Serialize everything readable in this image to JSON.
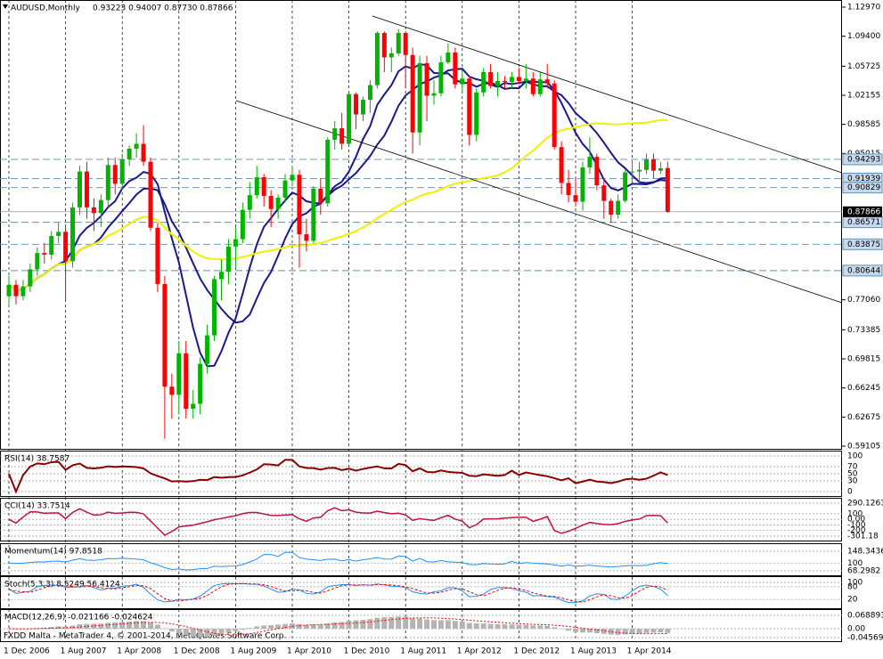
{
  "chart_data": {
    "type": "candlestick",
    "title": "AUDUSD,Monthly",
    "ohlc_text": "0.93223 0.94007 0.87730 0.87866",
    "footer": "FXDD Malta - MetaTrader 4, © 2001-2014, MetaQuotes Software Corp.",
    "categories": [
      "1 Dec 2006",
      null,
      null,
      null,
      null,
      null,
      null,
      null,
      "1 Aug 2007",
      null,
      null,
      null,
      null,
      null,
      null,
      null,
      "1 Apr 2008",
      null,
      null,
      null,
      null,
      null,
      null,
      null,
      "1 Dec 2008",
      null,
      null,
      null,
      null,
      null,
      null,
      null,
      "1 Aug 2009",
      null,
      null,
      null,
      null,
      null,
      null,
      null,
      "1 Apr 2010",
      null,
      null,
      null,
      null,
      null,
      null,
      null,
      "1 Dec 2010",
      null,
      null,
      null,
      null,
      null,
      null,
      null,
      "1 Aug 2011",
      null,
      null,
      null,
      null,
      null,
      null,
      null,
      "1 Apr 2012",
      null,
      null,
      null,
      null,
      null,
      null,
      null,
      "1 Dec 2012",
      null,
      null,
      null,
      null,
      null,
      null,
      null,
      "1 Aug 2013",
      null,
      null,
      null,
      null,
      null,
      null,
      null,
      "1 Apr 2014",
      null,
      null,
      null,
      null,
      null
    ],
    "open": [
      0.775,
      0.789,
      0.775,
      0.787,
      0.808,
      0.828,
      0.826,
      0.849,
      0.854,
      0.818,
      0.884,
      0.928,
      0.884,
      0.877,
      0.893,
      0.936,
      0.913,
      0.943,
      0.956,
      0.962,
      0.94,
      0.859,
      0.79,
      0.664,
      0.654,
      0.705,
      0.637,
      0.643,
      0.692,
      0.727,
      0.796,
      0.805,
      0.836,
      0.845,
      0.881,
      0.899,
      0.921,
      0.898,
      0.882,
      0.896,
      0.917,
      0.924,
      0.851,
      0.843,
      0.907,
      0.889,
      0.967,
      0.981,
      0.962,
      1.023,
      0.998,
      1.016,
      1.034,
      1.098,
      1.068,
      1.073,
      1.098,
      1.071,
      0.976,
      1.061,
      1.021,
      1.024,
      1.062,
      1.074,
      1.035,
      1.042,
      0.973,
      1.025,
      1.05,
      1.033,
      1.039,
      1.038,
      1.044,
      1.039,
      1.042,
      1.023,
      1.041,
      1.036,
      0.958,
      0.914,
      0.899,
      0.891,
      0.933,
      0.946,
      0.911,
      0.892,
      0.875,
      0.892,
      0.927,
      0.928,
      0.93,
      0.943,
      0.929,
      0.93223
    ],
    "high": [
      0.8,
      0.795,
      0.795,
      0.815,
      0.835,
      0.84,
      0.855,
      0.865,
      0.86,
      0.89,
      0.935,
      0.94,
      0.895,
      0.9,
      0.945,
      0.945,
      0.95,
      0.96,
      0.975,
      0.985,
      0.945,
      0.865,
      0.8,
      0.68,
      0.72,
      0.72,
      0.66,
      0.7,
      0.74,
      0.8,
      0.82,
      0.845,
      0.86,
      0.89,
      0.915,
      0.935,
      0.925,
      0.905,
      0.9,
      0.925,
      0.935,
      0.93,
      0.87,
      0.91,
      0.92,
      0.97,
      0.99,
      1.0,
      1.025,
      1.025,
      1.02,
      1.04,
      1.1,
      1.1,
      1.08,
      1.103,
      1.1,
      1.08,
      1.07,
      1.07,
      1.04,
      1.07,
      1.085,
      1.08,
      1.05,
      1.045,
      1.03,
      1.055,
      1.06,
      1.05,
      1.045,
      1.05,
      1.055,
      1.06,
      1.05,
      1.05,
      1.06,
      1.04,
      0.965,
      0.93,
      0.92,
      0.94,
      0.97,
      0.95,
      0.92,
      0.895,
      0.9,
      0.93,
      0.94,
      0.94,
      0.95,
      0.95,
      0.94,
      0.94007
    ],
    "low": [
      0.765,
      0.765,
      0.77,
      0.78,
      0.8,
      0.815,
      0.82,
      0.84,
      0.77,
      0.81,
      0.875,
      0.87,
      0.855,
      0.86,
      0.885,
      0.9,
      0.905,
      0.935,
      0.945,
      0.935,
      0.855,
      0.78,
      0.6,
      0.625,
      0.63,
      0.625,
      0.625,
      0.63,
      0.68,
      0.72,
      0.77,
      0.79,
      0.81,
      0.84,
      0.87,
      0.895,
      0.885,
      0.86,
      0.87,
      0.89,
      0.91,
      0.81,
      0.83,
      0.84,
      0.875,
      0.885,
      0.955,
      0.955,
      0.96,
      0.98,
      0.99,
      1.0,
      1.03,
      1.05,
      1.05,
      1.07,
      1.03,
      0.95,
      0.96,
      0.99,
      1.01,
      1.02,
      1.06,
      1.03,
      1.025,
      0.96,
      0.965,
      1.02,
      1.03,
      1.02,
      1.03,
      1.03,
      1.035,
      1.03,
      1.02,
      1.02,
      1.03,
      0.955,
      0.9,
      0.89,
      0.885,
      0.88,
      0.925,
      0.905,
      0.87,
      0.865,
      0.87,
      0.89,
      0.915,
      0.915,
      0.925,
      0.92,
      0.925,
      0.8773
    ],
    "close": [
      0.789,
      0.775,
      0.787,
      0.808,
      0.828,
      0.826,
      0.849,
      0.854,
      0.818,
      0.884,
      0.928,
      0.884,
      0.877,
      0.893,
      0.936,
      0.913,
      0.943,
      0.956,
      0.962,
      0.94,
      0.859,
      0.79,
      0.664,
      0.654,
      0.705,
      0.637,
      0.643,
      0.692,
      0.727,
      0.796,
      0.805,
      0.836,
      0.845,
      0.881,
      0.899,
      0.921,
      0.898,
      0.882,
      0.896,
      0.917,
      0.924,
      0.851,
      0.843,
      0.907,
      0.889,
      0.967,
      0.981,
      0.962,
      1.023,
      0.998,
      1.016,
      1.034,
      1.098,
      1.068,
      1.073,
      1.098,
      1.071,
      0.976,
      1.061,
      1.021,
      1.024,
      1.062,
      1.074,
      1.035,
      1.042,
      0.973,
      1.025,
      1.05,
      1.033,
      1.039,
      1.038,
      1.044,
      1.039,
      1.042,
      1.023,
      1.041,
      1.036,
      0.958,
      0.914,
      0.899,
      0.891,
      0.933,
      0.946,
      0.911,
      0.892,
      0.875,
      0.892,
      0.927,
      0.928,
      0.93,
      0.943,
      0.929,
      0.932,
      0.87866
    ],
    "up_color": "#00b400",
    "down_color": "#ff0000",
    "ma_colors": [
      "#1a1a8c",
      "#1a1a8c",
      "#f0f000"
    ],
    "ylim": [
      0.59105,
      1.1297
    ],
    "yticks": [
      {
        "value": 1.1297,
        "label": "1.12970"
      },
      {
        "value": 1.094,
        "label": "1.09400"
      },
      1.05725,
      1.02155,
      0.98585,
      0.95015,
      {
        "value": 0.7706,
        "label": "0.77060"
      },
      0.73385,
      0.69815,
      0.66245,
      0.62675,
      0.59105
    ],
    "levels": [
      0.94293,
      0.91939,
      0.90829,
      0.86571,
      0.83875,
      0.80644
    ],
    "indicators": [
      {
        "type": "rsi",
        "label": "RSI(14) 38.7587",
        "ylim": [
          0,
          100
        ],
        "yticks": [
          100,
          70,
          50,
          30,
          0
        ],
        "color": "#8b0000"
      },
      {
        "type": "cci",
        "label": "CCI(14) 33.7514",
        "ylim": [
          -301.18,
          290.1263
        ],
        "yticks": [
          290.1263,
          100,
          {
            "value": 0,
            "label": "0.00"
          },
          -100,
          -200,
          -301.18
        ],
        "color": "#c0143c"
      },
      {
        "type": "momentum",
        "label": "Momentum(14) 97.8518",
        "ylim": [
          68.2982,
          148.3436
        ],
        "yticks": [
          148.3436,
          100,
          68.2982
        ],
        "color": "#1e90ff"
      },
      {
        "type": "stoch",
        "label": "Stoch(5,3,3) 8.5249 56.4124",
        "ylim": [
          0,
          100
        ],
        "yticks": [
          100,
          80,
          20
        ],
        "color": "#1e90ff",
        "signal_color": "#ff0000"
      },
      {
        "type": "macd",
        "label": "MACD(12,26,9) -0.021166 -0.024624",
        "ylim": [
          -0.045694,
          0.068893
        ],
        "yticks": [
          0.068893,
          {
            "value": 0,
            "label": "0.00"
          },
          -0.045694
        ],
        "color": "#b4b4b4",
        "signal_color": "#ff0000"
      }
    ]
  }
}
